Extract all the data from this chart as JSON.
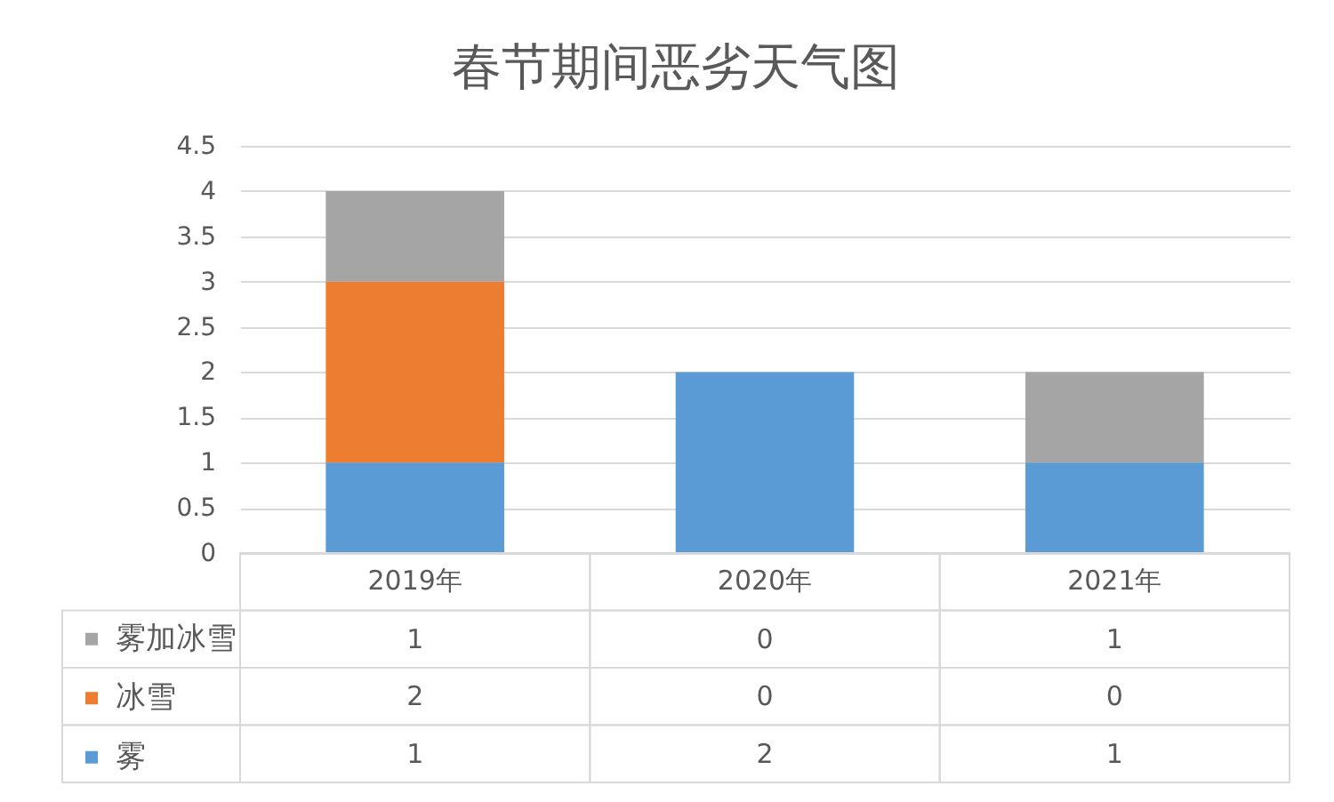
{
  "chart_data": {
    "type": "bar",
    "title": "春节期间恶劣天气图",
    "categories": [
      "2019年",
      "2020年",
      "2021年"
    ],
    "stacked": true,
    "series": [
      {
        "name": "雾",
        "color": "#5b9bd5",
        "values": [
          1,
          2,
          1
        ]
      },
      {
        "name": "冰雪",
        "color": "#ed7d31",
        "values": [
          2,
          0,
          0
        ]
      },
      {
        "name": "雾加冰雪",
        "color": "#a5a5a5",
        "values": [
          1,
          0,
          1
        ]
      }
    ],
    "ylim": [
      0,
      4.5
    ],
    "yticks": [
      0,
      0.5,
      1,
      1.5,
      2,
      2.5,
      3,
      3.5,
      4,
      4.5
    ],
    "grid": "y",
    "legend": "bottom",
    "data_labels": true
  }
}
